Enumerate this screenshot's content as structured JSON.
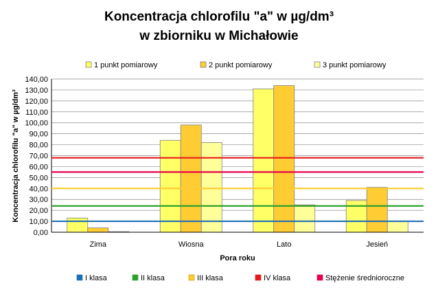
{
  "chart_data": {
    "type": "bar",
    "title_line1": "Koncentracja chlorofilu \"a\" w µg/dm³",
    "title_line2": "w zbiorniku w Michałowie",
    "xlabel": "Pora roku",
    "ylabel": "Koncentracja chlorofilu \"a\" w µg/dm³",
    "categories": [
      "Zima",
      "Wiosna",
      "Lato",
      "Jesień"
    ],
    "ylim": [
      0,
      140
    ],
    "ytick_step": 10,
    "ytick_labels": [
      "0,00",
      "10,00",
      "20,00",
      "30,00",
      "40,00",
      "50,00",
      "60,00",
      "70,00",
      "80,00",
      "90,00",
      "100,00",
      "110,00",
      "120,00",
      "130,00",
      "140,00"
    ],
    "grid": true,
    "series": [
      {
        "name": "1 punkt pomiarowy",
        "color": "#FFFF66",
        "values": [
          13,
          84,
          131,
          29
        ]
      },
      {
        "name": "2 punkt pomiarowy",
        "color": "#FFCC33",
        "values": [
          4,
          98,
          134,
          41
        ]
      },
      {
        "name": "3 punkt pomiarowy",
        "color": "#FFFF99",
        "values": [
          0.5,
          82,
          25,
          10
        ]
      }
    ],
    "reference_lines": [
      {
        "name": "I klasa",
        "value": 10,
        "color": "#1F6FB5"
      },
      {
        "name": "II klasa",
        "value": 24,
        "color": "#2CA02C"
      },
      {
        "name": "III klasa",
        "value": 40,
        "color": "#FFCC33"
      },
      {
        "name": "IV klasa",
        "value": 68,
        "color": "#E41A1C"
      },
      {
        "name": "Stężenie średnioroczne",
        "value": 55,
        "color": "#E6004C"
      }
    ],
    "top_legend_position": "top",
    "bottom_legend_position": "bottom"
  }
}
